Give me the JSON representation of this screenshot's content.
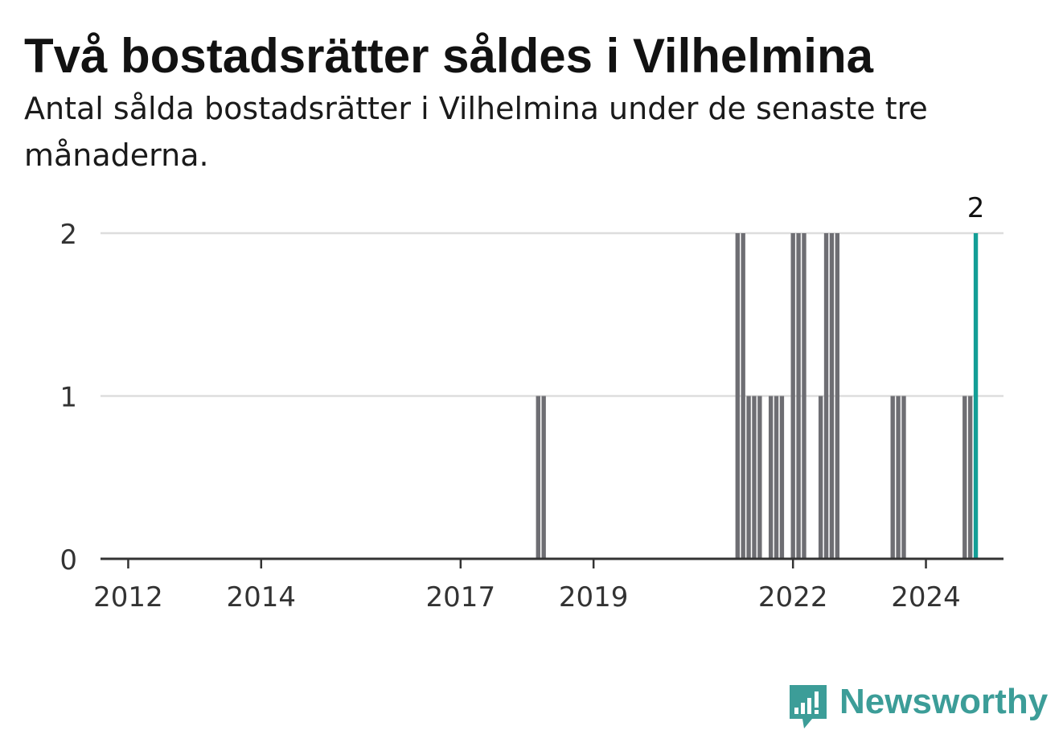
{
  "title": "Två bostadsrätter såldes i Vilhelmina",
  "subtitle": "Antal sålda bostadsrätter i Vilhelmina under de senaste tre månaderna.",
  "brand": {
    "name": "Newsworthy",
    "color": "#3c9d98",
    "icon": "newsworthy-bar-chart-icon"
  },
  "colors": {
    "bar": "#6e6e73",
    "highlight": "#139e96",
    "grid": "#dddddd",
    "axis": "#333333"
  },
  "chart_data": {
    "type": "bar",
    "title": "Två bostadsrätter såldes i Vilhelmina",
    "xlabel": "",
    "ylabel": "",
    "x_range": [
      "2011-08",
      "2025-03"
    ],
    "ylim": [
      0,
      2
    ],
    "y_ticks": [
      "0",
      "1",
      "2"
    ],
    "x_ticks": [
      {
        "date": "2012-01",
        "label": "2012"
      },
      {
        "date": "2014-01",
        "label": "2014"
      },
      {
        "date": "2017-01",
        "label": "2017"
      },
      {
        "date": "2019-01",
        "label": "2019"
      },
      {
        "date": "2022-01",
        "label": "2022"
      },
      {
        "date": "2024-01",
        "label": "2024"
      }
    ],
    "grid": true,
    "bars": [
      {
        "period": "2018-03",
        "value": 1
      },
      {
        "period": "2018-04",
        "value": 1
      },
      {
        "period": "2021-03",
        "value": 2
      },
      {
        "period": "2021-04",
        "value": 2
      },
      {
        "period": "2021-05",
        "value": 1
      },
      {
        "period": "2021-06",
        "value": 1
      },
      {
        "period": "2021-07",
        "value": 1
      },
      {
        "period": "2021-09",
        "value": 1
      },
      {
        "period": "2021-10",
        "value": 1
      },
      {
        "period": "2021-11",
        "value": 1
      },
      {
        "period": "2022-01",
        "value": 2
      },
      {
        "period": "2022-02",
        "value": 2
      },
      {
        "period": "2022-03",
        "value": 2
      },
      {
        "period": "2022-06",
        "value": 1
      },
      {
        "period": "2022-07",
        "value": 2
      },
      {
        "period": "2022-08",
        "value": 2
      },
      {
        "period": "2022-09",
        "value": 2
      },
      {
        "period": "2023-07",
        "value": 1
      },
      {
        "period": "2023-08",
        "value": 1
      },
      {
        "period": "2023-09",
        "value": 1
      },
      {
        "period": "2024-08",
        "value": 1
      },
      {
        "period": "2024-09",
        "value": 1
      },
      {
        "period": "2024-10",
        "value": 2,
        "highlight": true,
        "label": "2"
      }
    ]
  }
}
